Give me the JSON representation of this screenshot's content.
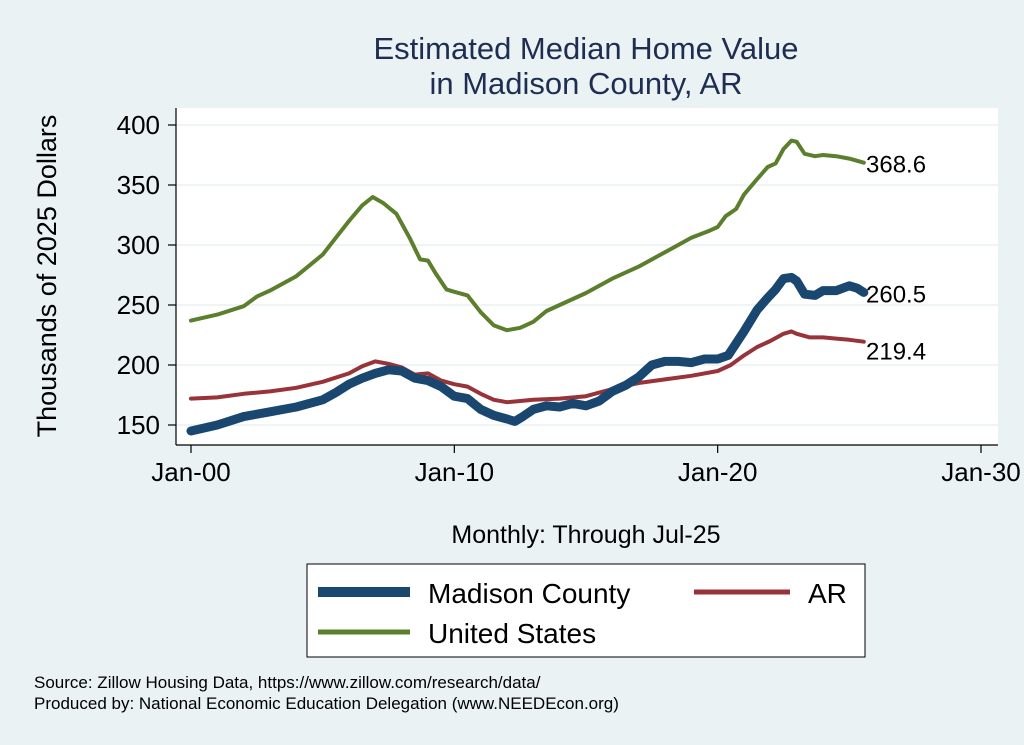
{
  "chart_data": {
    "type": "line",
    "title": [
      "Estimated Median Home Value",
      "in Madison County, AR"
    ],
    "xlabel": "Monthly: Through Jul-25",
    "ylabel": "Thousands of 2025 Dollars",
    "x_ticks": [
      {
        "value": 2000,
        "label": "Jan-00"
      },
      {
        "value": 2010,
        "label": "Jan-10"
      },
      {
        "value": 2020,
        "label": "Jan-20"
      },
      {
        "value": 2030,
        "label": "Jan-30"
      }
    ],
    "y_ticks": [
      150,
      200,
      250,
      300,
      350,
      400
    ],
    "xlim": [
      2000,
      2030
    ],
    "ylim": [
      150,
      400
    ],
    "series": [
      {
        "name": "United States",
        "color": "#5b7f2c",
        "end_label": "368.6",
        "points": [
          [
            2000.0,
            237
          ],
          [
            2001.0,
            242
          ],
          [
            2002.0,
            249
          ],
          [
            2002.5,
            257
          ],
          [
            2003.0,
            262
          ],
          [
            2004.0,
            274
          ],
          [
            2004.5,
            283
          ],
          [
            2005.0,
            292
          ],
          [
            2005.5,
            306
          ],
          [
            2006.0,
            320
          ],
          [
            2006.5,
            333
          ],
          [
            2006.9,
            340
          ],
          [
            2007.3,
            335
          ],
          [
            2007.8,
            326
          ],
          [
            2008.3,
            306
          ],
          [
            2008.7,
            288
          ],
          [
            2009.0,
            287
          ],
          [
            2009.3,
            276
          ],
          [
            2009.7,
            263
          ],
          [
            2010.0,
            261
          ],
          [
            2010.5,
            258
          ],
          [
            2011.0,
            244
          ],
          [
            2011.5,
            233
          ],
          [
            2012.0,
            229
          ],
          [
            2012.5,
            231
          ],
          [
            2013.0,
            236
          ],
          [
            2013.5,
            245
          ],
          [
            2014.0,
            250
          ],
          [
            2015.0,
            260
          ],
          [
            2016.0,
            272
          ],
          [
            2017.0,
            282
          ],
          [
            2018.0,
            294
          ],
          [
            2019.0,
            306
          ],
          [
            2019.7,
            312
          ],
          [
            2020.0,
            315
          ],
          [
            2020.3,
            324
          ],
          [
            2020.7,
            330
          ],
          [
            2021.0,
            342
          ],
          [
            2021.5,
            355
          ],
          [
            2021.9,
            365
          ],
          [
            2022.2,
            368
          ],
          [
            2022.5,
            380
          ],
          [
            2022.8,
            387
          ],
          [
            2023.0,
            386
          ],
          [
            2023.3,
            376
          ],
          [
            2023.7,
            374
          ],
          [
            2024.0,
            375
          ],
          [
            2024.5,
            374
          ],
          [
            2025.0,
            372
          ],
          [
            2025.55,
            368.6
          ]
        ]
      },
      {
        "name": "AR",
        "color": "#973339",
        "end_label": "219.4",
        "points": [
          [
            2000.0,
            172
          ],
          [
            2001.0,
            173
          ],
          [
            2002.0,
            176
          ],
          [
            2003.0,
            178
          ],
          [
            2004.0,
            181
          ],
          [
            2005.0,
            186
          ],
          [
            2006.0,
            193
          ],
          [
            2006.5,
            199
          ],
          [
            2007.0,
            203
          ],
          [
            2007.5,
            201
          ],
          [
            2008.0,
            198
          ],
          [
            2008.5,
            192
          ],
          [
            2009.0,
            193
          ],
          [
            2009.5,
            187
          ],
          [
            2010.0,
            184
          ],
          [
            2010.5,
            182
          ],
          [
            2011.0,
            176
          ],
          [
            2011.5,
            171
          ],
          [
            2012.0,
            169
          ],
          [
            2012.5,
            170
          ],
          [
            2013.0,
            171
          ],
          [
            2014.0,
            172
          ],
          [
            2015.0,
            174
          ],
          [
            2016.0,
            180
          ],
          [
            2017.0,
            185
          ],
          [
            2018.0,
            188
          ],
          [
            2019.0,
            191
          ],
          [
            2020.0,
            195
          ],
          [
            2020.5,
            200
          ],
          [
            2021.0,
            208
          ],
          [
            2021.5,
            215
          ],
          [
            2022.0,
            220
          ],
          [
            2022.5,
            226
          ],
          [
            2022.8,
            228
          ],
          [
            2023.0,
            226
          ],
          [
            2023.5,
            223
          ],
          [
            2024.0,
            223
          ],
          [
            2024.5,
            222
          ],
          [
            2025.0,
            221
          ],
          [
            2025.55,
            219.4
          ]
        ]
      },
      {
        "name": "Madison County",
        "color": "#1a476f",
        "end_label": "260.5",
        "points": [
          [
            2000.0,
            145
          ],
          [
            2001.0,
            150
          ],
          [
            2002.0,
            157
          ],
          [
            2003.0,
            161
          ],
          [
            2004.0,
            165
          ],
          [
            2005.0,
            171
          ],
          [
            2005.5,
            177
          ],
          [
            2006.0,
            184
          ],
          [
            2006.5,
            189
          ],
          [
            2007.0,
            193
          ],
          [
            2007.5,
            196
          ],
          [
            2008.0,
            195
          ],
          [
            2008.5,
            189
          ],
          [
            2009.0,
            187
          ],
          [
            2009.5,
            182
          ],
          [
            2010.0,
            174
          ],
          [
            2010.5,
            172
          ],
          [
            2011.0,
            163
          ],
          [
            2011.5,
            158
          ],
          [
            2012.0,
            155
          ],
          [
            2012.3,
            153
          ],
          [
            2012.6,
            157
          ],
          [
            2013.0,
            163
          ],
          [
            2013.5,
            166
          ],
          [
            2014.0,
            165
          ],
          [
            2014.5,
            168
          ],
          [
            2015.0,
            166
          ],
          [
            2015.5,
            170
          ],
          [
            2016.0,
            178
          ],
          [
            2016.5,
            183
          ],
          [
            2017.0,
            190
          ],
          [
            2017.5,
            200
          ],
          [
            2018.0,
            203
          ],
          [
            2018.5,
            203
          ],
          [
            2019.0,
            202
          ],
          [
            2019.5,
            205
          ],
          [
            2020.0,
            205
          ],
          [
            2020.4,
            208
          ],
          [
            2020.7,
            218
          ],
          [
            2021.0,
            228
          ],
          [
            2021.5,
            246
          ],
          [
            2021.9,
            256
          ],
          [
            2022.2,
            263
          ],
          [
            2022.5,
            272
          ],
          [
            2022.8,
            273
          ],
          [
            2023.0,
            270
          ],
          [
            2023.3,
            259
          ],
          [
            2023.7,
            258
          ],
          [
            2024.0,
            262
          ],
          [
            2024.5,
            262
          ],
          [
            2025.0,
            266
          ],
          [
            2025.3,
            264
          ],
          [
            2025.55,
            260.5
          ]
        ]
      }
    ],
    "legend": [
      {
        "name": "Madison County",
        "color": "#1a476f"
      },
      {
        "name": "AR",
        "color": "#973339"
      },
      {
        "name": "United States",
        "color": "#5b7f2c"
      }
    ]
  },
  "footer": {
    "source": "Source: Zillow Housing Data, https://www.zillow.com/research/data/",
    "produced_by": "Produced by: National Economic Education Delegation (www.NEEDEcon.org)"
  }
}
